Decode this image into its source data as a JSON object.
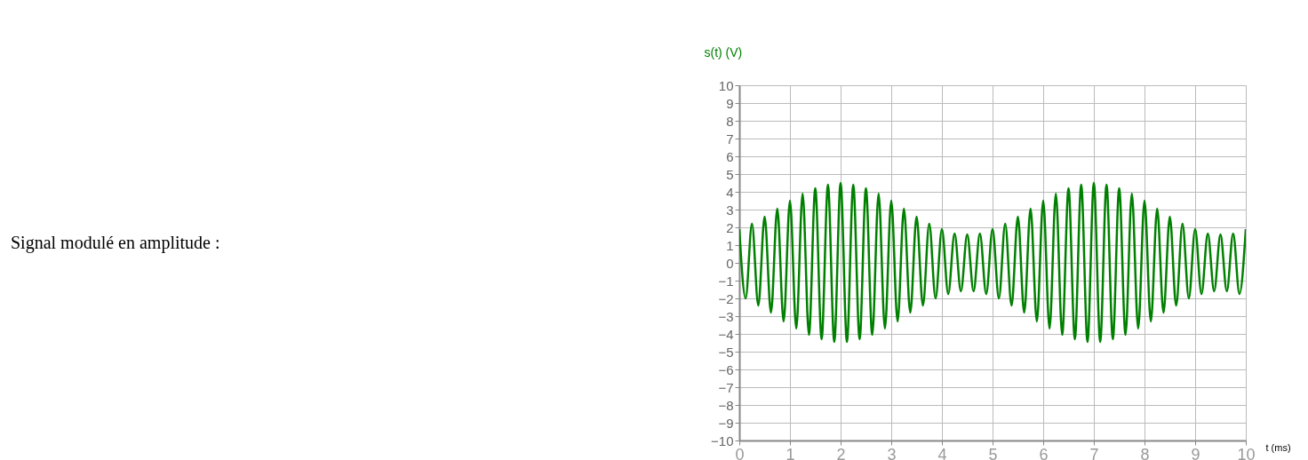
{
  "chart_data": {
    "type": "line",
    "title": "Signal modulé en amplitude :",
    "xlabel": "t (ms)",
    "ylabel": "s(t) (V)",
    "x": [
      0,
      0.125,
      0.25,
      0.375,
      0.5,
      0.625,
      0.75,
      0.875,
      1,
      1.125,
      1.25,
      1.375,
      1.5,
      1.625,
      1.75,
      1.875,
      2,
      2.125,
      2.25,
      2.375,
      2.5,
      2.625,
      2.75,
      2.875,
      3,
      3.125,
      3.25,
      3.375,
      3.5,
      3.625,
      3.75,
      3.875,
      4,
      4.125,
      4.25,
      4.375,
      4.5,
      4.625,
      4.75,
      4.875,
      5,
      5.125,
      5.25,
      5.375,
      5.5,
      5.625,
      5.75,
      5.875,
      6,
      6.125,
      6.25,
      6.375,
      6.5,
      6.625,
      6.75,
      6.875,
      7,
      7.125,
      7.25,
      7.375,
      7.5,
      7.625,
      7.75,
      7.875,
      8,
      8.125,
      8.25,
      8.375,
      8.5,
      8.625,
      8.75,
      8.875,
      9,
      9.125,
      9.25,
      9.375,
      9.5,
      9.625,
      9.75,
      9.875,
      10
    ],
    "series": [
      {
        "color": "#008000",
        "values": [
          1.9,
          -2.0,
          2.2,
          -2.4,
          2.6,
          -2.8,
          3.05,
          -3.3,
          3.5,
          -3.7,
          3.9,
          -4.05,
          4.2,
          -4.3,
          4.4,
          -4.45,
          4.5,
          -4.45,
          4.4,
          -4.3,
          4.2,
          -4.05,
          3.9,
          -3.7,
          3.5,
          -3.3,
          3.05,
          -2.8,
          2.6,
          -2.4,
          2.2,
          -2.0,
          1.9,
          -1.75,
          1.65,
          -1.6,
          1.6,
          -1.6,
          1.65,
          -1.75,
          1.9,
          -2.0,
          2.2,
          -2.4,
          2.6,
          -2.8,
          3.05,
          -3.3,
          3.5,
          -3.7,
          3.9,
          -4.05,
          4.2,
          -4.3,
          4.4,
          -4.45,
          4.5,
          -4.45,
          4.4,
          -4.3,
          4.2,
          -4.05,
          3.9,
          -3.7,
          3.5,
          -3.3,
          3.05,
          -2.8,
          2.6,
          -2.4,
          2.2,
          -2.0,
          1.9,
          -1.75,
          1.65,
          -1.6,
          1.6,
          -1.6,
          1.65,
          -1.75,
          1.9
        ]
      }
    ],
    "xlim": [
      0,
      10
    ],
    "xticks": [
      0,
      1,
      2,
      3,
      4,
      5,
      6,
      7,
      8,
      9,
      10
    ],
    "ylim": [
      -10,
      10
    ],
    "yticks": [
      -10,
      -9,
      -8,
      -7,
      -6,
      -5,
      -4,
      -3,
      -2,
      -1,
      0,
      1,
      2,
      3,
      4,
      5,
      6,
      7,
      8,
      9,
      10
    ],
    "grid": true,
    "legend": false,
    "marker": "none",
    "line_style": "solid"
  }
}
